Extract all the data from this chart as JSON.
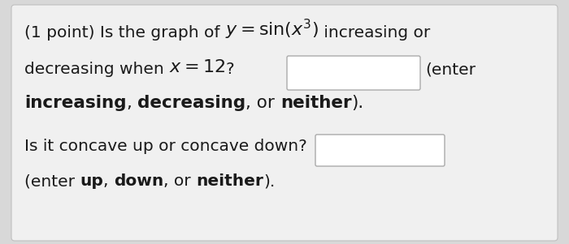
{
  "background_color": "#d8d8d8",
  "card_color": "#f0f0f0",
  "box_color": "#ffffff",
  "box_border": "#aaaaaa",
  "text_color": "#1a1a1a",
  "font_size": 14.5,
  "math_font_size": 16,
  "line1_pre": "(1 point) Is the graph of ",
  "line1_math": "$y = \\sin(x^3)$",
  "line1_post": " increasing or",
  "line2_pre": "decreasing when ",
  "line2_math": "$x = 12$",
  "line2_post": "?",
  "line2_enter": "(enter",
  "line3_segments": [
    {
      "text": "increasing",
      "bold": true
    },
    {
      "text": ", ",
      "bold": false
    },
    {
      "text": "decreasing",
      "bold": true
    },
    {
      "text": ", or ",
      "bold": false
    },
    {
      "text": "neither",
      "bold": true
    },
    {
      "text": ").",
      "bold": false
    }
  ],
  "line4_text": "Is it concave up or concave down?",
  "line5_segments": [
    {
      "text": "(enter ",
      "bold": false
    },
    {
      "text": "up",
      "bold": true
    },
    {
      "text": ", ",
      "bold": false
    },
    {
      "text": "down",
      "bold": true
    },
    {
      "text": ", or ",
      "bold": false
    },
    {
      "text": "neither",
      "bold": true
    },
    {
      "text": ").",
      "bold": false
    }
  ]
}
